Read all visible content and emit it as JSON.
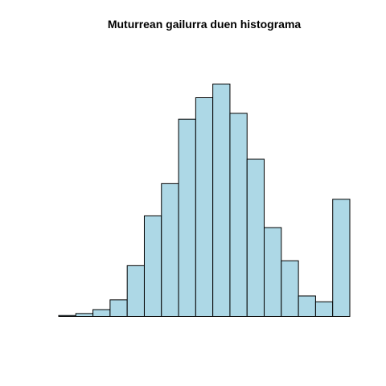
{
  "chart_data": {
    "type": "bar",
    "title": "Muturrean gailurra duen histograma",
    "xlabel": "",
    "ylabel": "",
    "axes_shown": false,
    "grid": false,
    "bin_width": 1,
    "bins": [
      {
        "from": 0,
        "to": 1,
        "count": 1
      },
      {
        "from": 1,
        "to": 2,
        "count": 3
      },
      {
        "from": 2,
        "to": 3,
        "count": 7
      },
      {
        "from": 3,
        "to": 4,
        "count": 17
      },
      {
        "from": 4,
        "to": 5,
        "count": 52
      },
      {
        "from": 5,
        "to": 6,
        "count": 103
      },
      {
        "from": 6,
        "to": 7,
        "count": 136
      },
      {
        "from": 7,
        "to": 8,
        "count": 202
      },
      {
        "from": 8,
        "to": 9,
        "count": 224
      },
      {
        "from": 9,
        "to": 10,
        "count": 238
      },
      {
        "from": 10,
        "to": 11,
        "count": 208
      },
      {
        "from": 11,
        "to": 12,
        "count": 161
      },
      {
        "from": 12,
        "to": 13,
        "count": 91
      },
      {
        "from": 13,
        "to": 14,
        "count": 57
      },
      {
        "from": 14,
        "to": 15,
        "count": 21
      },
      {
        "from": 15,
        "to": 16,
        "count": 15
      },
      {
        "from": 16,
        "to": 17,
        "count": 120
      }
    ],
    "ylim": [
      0,
      238
    ],
    "colors": {
      "bar_fill": "#add8e6",
      "bar_stroke": "#000000",
      "background": "#ffffff"
    }
  }
}
